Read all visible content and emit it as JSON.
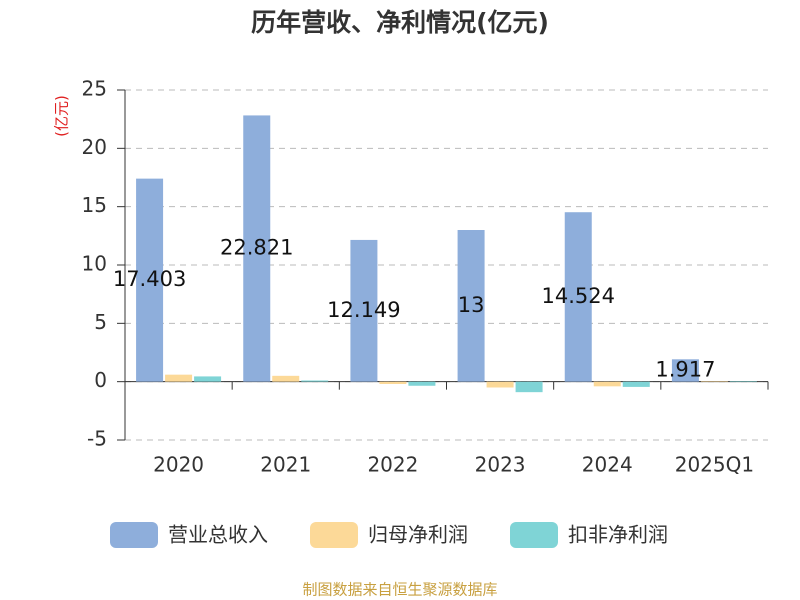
{
  "chart_data": {
    "type": "bar",
    "title": "历年营收、净利情况(亿元)",
    "y_label": "(亿元)",
    "categories": [
      "2020",
      "2021",
      "2022",
      "2023",
      "2024",
      "2025Q1"
    ],
    "series": [
      {
        "name": "营业总收入",
        "color": "#8eaedb",
        "values": [
          17.403,
          22.821,
          12.149,
          13,
          14.524,
          1.917
        ],
        "show_labels": true
      },
      {
        "name": "归母净利润",
        "color": "#fcd998",
        "values": [
          0.6,
          0.5,
          -0.2,
          -0.5,
          -0.4,
          0.05
        ]
      },
      {
        "name": "扣非净利润",
        "color": "#7fd4d6",
        "values": [
          0.45,
          0.1,
          -0.35,
          -0.9,
          -0.45,
          0.05
        ]
      }
    ],
    "ylim": [
      -5,
      25
    ],
    "yticks": [
      -5,
      0,
      5,
      10,
      15,
      20,
      25
    ],
    "grid": true,
    "source": "制图数据来自恒生聚源数据库"
  }
}
